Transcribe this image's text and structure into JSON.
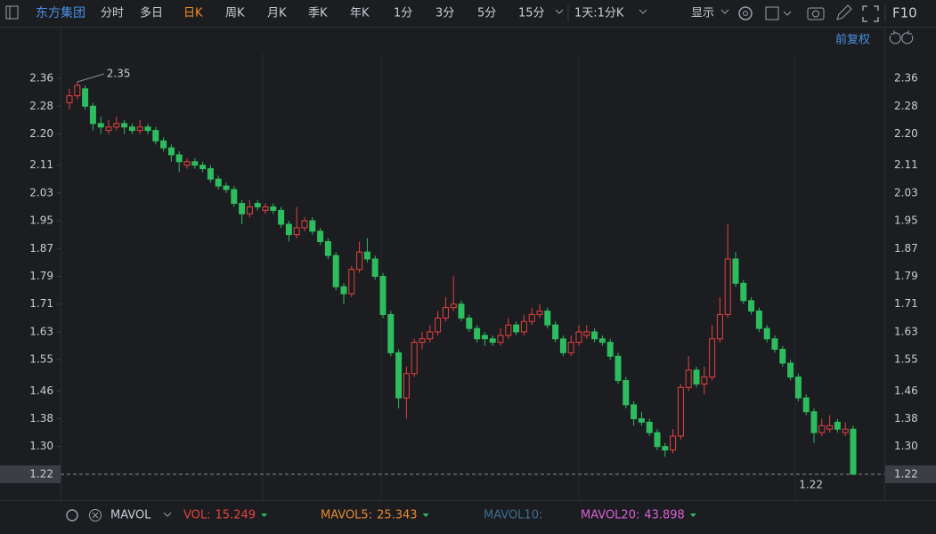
{
  "toolbar": {
    "stock": "东方集团",
    "tabs": [
      "分时",
      "多日",
      "日K",
      "周K",
      "月K",
      "季K",
      "年K",
      "1分",
      "3分",
      "5分",
      "15分"
    ],
    "active": "日K",
    "period": "1天:1分K",
    "display": "显示",
    "f10": "F10",
    "adjust": "前复权"
  },
  "chart_data": {
    "type": "candlestick",
    "ylim": [
      1.189,
      2.432
    ],
    "yticks": [
      2.36,
      2.28,
      {
        "value": 2.2,
        "label": "2.20"
      },
      2.11,
      2.03,
      1.95,
      1.87,
      1.79,
      1.71,
      1.63,
      1.55,
      1.46,
      1.38,
      {
        "value": 1.3,
        "label": "1.30"
      },
      1.22
    ],
    "last_price": 1.22,
    "max_price": 2.35,
    "min_price": 1.22,
    "colors": {
      "up": "#e8413f",
      "down": "#2ebd5e"
    },
    "open": [
      2.29,
      2.31,
      2.33,
      2.28,
      2.23,
      2.21,
      2.22,
      2.23,
      2.22,
      2.21,
      2.22,
      2.21,
      2.18,
      2.16,
      2.14,
      2.11,
      2.12,
      2.11,
      2.1,
      2.07,
      2.05,
      2.04,
      2.0,
      1.97,
      2.0,
      1.98,
      1.99,
      1.98,
      1.94,
      1.91,
      1.93,
      1.95,
      1.92,
      1.89,
      1.85,
      1.76,
      1.74,
      1.81,
      1.86,
      1.84,
      1.79,
      1.68,
      1.57,
      1.44,
      1.51,
      1.6,
      1.61,
      1.63,
      1.67,
      1.7,
      1.71,
      1.67,
      1.64,
      1.62,
      1.61,
      1.6,
      1.62,
      1.65,
      1.63,
      1.66,
      1.68,
      1.69,
      1.65,
      1.61,
      1.57,
      1.6,
      1.62,
      1.63,
      1.61,
      1.6,
      1.56,
      1.49,
      1.42,
      1.38,
      1.37,
      1.34,
      1.3,
      1.29,
      1.33,
      1.47,
      1.52,
      1.48,
      1.5,
      1.61,
      1.68,
      1.84,
      1.77,
      1.72,
      1.69,
      1.64,
      1.61,
      1.58,
      1.54,
      1.5,
      1.44,
      1.4,
      1.34,
      1.35,
      1.37,
      1.34,
      1.35
    ],
    "high": [
      2.33,
      2.35,
      2.34,
      2.29,
      2.25,
      2.24,
      2.25,
      2.24,
      2.23,
      2.24,
      2.23,
      2.22,
      2.19,
      2.17,
      2.15,
      2.13,
      2.13,
      2.12,
      2.11,
      2.08,
      2.06,
      2.05,
      2.01,
      2.01,
      2.01,
      2.0,
      2.0,
      1.99,
      1.95,
      1.99,
      1.96,
      1.96,
      1.93,
      1.9,
      1.86,
      1.77,
      1.82,
      1.89,
      1.9,
      1.85,
      1.8,
      1.69,
      1.58,
      1.53,
      1.61,
      1.63,
      1.65,
      1.69,
      1.73,
      1.79,
      1.72,
      1.68,
      1.65,
      1.63,
      1.62,
      1.64,
      1.67,
      1.66,
      1.68,
      1.7,
      1.71,
      1.7,
      1.66,
      1.62,
      1.62,
      1.65,
      1.65,
      1.64,
      1.62,
      1.61,
      1.57,
      1.5,
      1.43,
      1.4,
      1.38,
      1.35,
      1.31,
      1.35,
      1.48,
      1.56,
      1.53,
      1.53,
      1.65,
      1.73,
      1.94,
      1.86,
      1.78,
      1.73,
      1.7,
      1.65,
      1.62,
      1.59,
      1.55,
      1.51,
      1.45,
      1.41,
      1.38,
      1.39,
      1.38,
      1.37,
      1.36
    ],
    "low": [
      2.27,
      2.3,
      2.27,
      2.21,
      2.2,
      2.2,
      2.21,
      2.2,
      2.2,
      2.2,
      2.2,
      2.17,
      2.15,
      2.12,
      2.09,
      2.1,
      2.1,
      2.09,
      2.06,
      2.04,
      2.03,
      1.99,
      1.94,
      1.96,
      1.98,
      1.97,
      1.97,
      1.93,
      1.89,
      1.9,
      1.92,
      1.91,
      1.88,
      1.84,
      1.75,
      1.71,
      1.73,
      1.8,
      1.83,
      1.78,
      1.67,
      1.56,
      1.41,
      1.38,
      1.5,
      1.58,
      1.6,
      1.62,
      1.66,
      1.69,
      1.66,
      1.63,
      1.6,
      1.59,
      1.59,
      1.59,
      1.61,
      1.62,
      1.62,
      1.65,
      1.67,
      1.64,
      1.6,
      1.56,
      1.56,
      1.59,
      1.61,
      1.6,
      1.59,
      1.55,
      1.48,
      1.41,
      1.36,
      1.36,
      1.33,
      1.29,
      1.27,
      1.28,
      1.32,
      1.46,
      1.47,
      1.45,
      1.49,
      1.6,
      1.67,
      1.76,
      1.71,
      1.68,
      1.63,
      1.6,
      1.57,
      1.53,
      1.49,
      1.43,
      1.39,
      1.31,
      1.33,
      1.34,
      1.34,
      1.33,
      1.22
    ],
    "close": [
      2.31,
      2.34,
      2.28,
      2.23,
      2.22,
      2.22,
      2.23,
      2.22,
      2.21,
      2.22,
      2.21,
      2.18,
      2.16,
      2.14,
      2.12,
      2.12,
      2.11,
      2.1,
      2.07,
      2.05,
      2.04,
      2.0,
      1.97,
      1.99,
      1.99,
      1.99,
      1.98,
      1.94,
      1.91,
      1.93,
      1.95,
      1.92,
      1.89,
      1.85,
      1.76,
      1.74,
      1.81,
      1.86,
      1.84,
      1.79,
      1.68,
      1.57,
      1.44,
      1.51,
      1.6,
      1.61,
      1.63,
      1.67,
      1.7,
      1.71,
      1.67,
      1.64,
      1.61,
      1.61,
      1.6,
      1.62,
      1.65,
      1.63,
      1.66,
      1.68,
      1.69,
      1.65,
      1.61,
      1.57,
      1.6,
      1.63,
      1.63,
      1.61,
      1.6,
      1.56,
      1.49,
      1.42,
      1.38,
      1.37,
      1.34,
      1.3,
      1.29,
      1.33,
      1.47,
      1.52,
      1.48,
      1.5,
      1.61,
      1.68,
      1.84,
      1.77,
      1.72,
      1.69,
      1.64,
      1.61,
      1.58,
      1.54,
      1.5,
      1.44,
      1.4,
      1.34,
      1.36,
      1.36,
      1.35,
      1.35,
      1.22
    ]
  },
  "indicator_bar": {
    "name": "MAVOL",
    "items": [
      {
        "label": "VOL:",
        "value": 15.249,
        "color": "#e8413f"
      },
      {
        "label": "MAVOL5:",
        "value": 25.343,
        "color": "#e8892f"
      },
      {
        "label": "MAVOL10:",
        "color": "#3e6f8e"
      },
      {
        "label": "MAVOL20:",
        "value": 43.898,
        "color": "#d860d4"
      }
    ]
  }
}
